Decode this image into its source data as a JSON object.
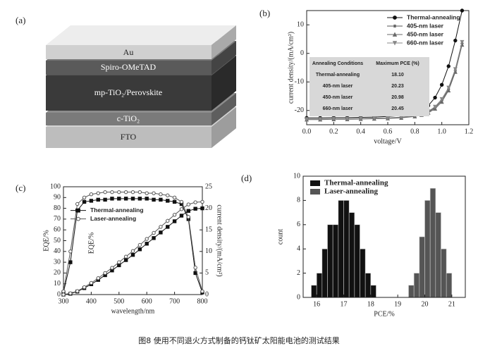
{
  "panels": [
    "(a)",
    "(b)",
    "(c)",
    "(d)"
  ],
  "device": {
    "layers": [
      "Au",
      "Spiro-OMeTAD",
      "mp-TiO₂/Perovskite",
      "c-TiO₂",
      "FTO"
    ]
  },
  "caption": "图8  使用不同退火方式制备的钙钛矿太阳能电池的测试结果",
  "chart_data": [
    {
      "type": "line",
      "xlabel": "voltage/V",
      "ylabel": "current density/(mA/cm²)",
      "x": [
        0,
        0.1,
        0.2,
        0.3,
        0.4,
        0.5,
        0.6,
        0.7,
        0.8,
        0.85,
        0.9,
        0.95,
        1.0,
        1.05,
        1.1,
        1.15
      ],
      "xlim": [
        0,
        1.2
      ],
      "ylim": [
        -25,
        15
      ],
      "xticks": [
        {
          "value": 0,
          "label": "0.0"
        },
        0.2,
        0.4,
        0.6,
        0.8,
        {
          "value": 1,
          "label": "1.0"
        },
        1.2
      ],
      "yticks": [
        -20,
        -10,
        0,
        10
      ],
      "legend": "upper right",
      "series": [
        {
          "name": "Thermal-annealing",
          "color": "#111111",
          "marker": "circle",
          "values": [
            -22.6,
            -22.6,
            -22.5,
            -22.5,
            -22.4,
            -22.3,
            -22.1,
            -21.8,
            -21.0,
            -20.0,
            -18.3,
            -15.5,
            -11.0,
            -4.5,
            4.5,
            15
          ]
        },
        {
          "name": "405-nm laser",
          "color": "#555555",
          "marker": "star",
          "values": [
            -23.1,
            -23.1,
            -23.0,
            -23.0,
            -22.9,
            -22.8,
            -22.7,
            -22.4,
            -21.9,
            -21.4,
            -20.5,
            -19.0,
            -16.5,
            -12.5,
            -6.0,
            3.5
          ]
        },
        {
          "name": "450-nm laser",
          "color": "#6a6a6a",
          "marker": "triangle-up",
          "values": [
            -23.2,
            -23.2,
            -23.1,
            -23.1,
            -23.0,
            -22.9,
            -22.8,
            -22.6,
            -22.1,
            -21.6,
            -20.8,
            -19.4,
            -17.0,
            -13.0,
            -6.5,
            3.0
          ]
        },
        {
          "name": "660-nm laser",
          "color": "#888888",
          "marker": "triangle-down",
          "values": [
            -23.0,
            -23.0,
            -22.9,
            -22.9,
            -22.8,
            -22.7,
            -22.6,
            -22.3,
            -21.8,
            -21.2,
            -20.3,
            -18.7,
            -16.0,
            -12.0,
            -5.5,
            4.0
          ]
        }
      ],
      "table": {
        "columns": [
          "Annealing Conditions",
          "Maximum PCE (%)"
        ],
        "rows": [
          [
            "Thermal-annealing",
            "18.10"
          ],
          [
            "405-nm laser",
            "20.23"
          ],
          [
            "450-nm laser",
            "20.98"
          ],
          [
            "660-nm laser",
            "20.45"
          ]
        ]
      }
    },
    {
      "type": "line",
      "xlabel": "wavelength/nm",
      "ylabel": "EQE/%",
      "y2label": "current density/(mA/cm²)",
      "annotation": "EQE/%",
      "x": [
        300,
        325,
        350,
        375,
        400,
        425,
        450,
        475,
        500,
        525,
        550,
        575,
        600,
        625,
        650,
        675,
        700,
        725,
        750,
        775,
        800
      ],
      "xlim": [
        300,
        800
      ],
      "ylim": [
        0,
        100
      ],
      "y2lim": [
        0,
        25
      ],
      "xticks": [
        300,
        400,
        500,
        600,
        700,
        800
      ],
      "yticks": [
        0,
        10,
        20,
        30,
        40,
        50,
        60,
        70,
        80,
        90,
        100
      ],
      "y2ticks": [
        0,
        5,
        10,
        15,
        20,
        25
      ],
      "legend": "center left",
      "series": [
        {
          "name": "Thermal-annealing",
          "color": "#111111",
          "marker": "square",
          "values": [
            2,
            30,
            78,
            86,
            87,
            88,
            88,
            89,
            89,
            89,
            89,
            89,
            89,
            88,
            88,
            87,
            86,
            84,
            70,
            20,
            2
          ]
        },
        {
          "name": "Laser-annealing",
          "color": "#555555",
          "marker": "circle-open",
          "values": [
            3,
            40,
            84,
            90,
            93,
            94,
            95,
            95,
            95,
            95,
            95,
            95,
            94,
            94,
            93,
            92,
            90,
            86,
            72,
            25,
            3
          ]
        },
        {
          "color": "#111111",
          "marker": "square",
          "axis": "y2",
          "values": [
            0,
            0.2,
            0.7,
            1.5,
            2.4,
            3.4,
            4.5,
            5.6,
            6.8,
            8.0,
            9.2,
            10.5,
            11.8,
            13.1,
            14.4,
            15.7,
            17.0,
            18.3,
            19.4,
            19.9,
            20.0
          ]
        },
        {
          "color": "#555555",
          "marker": "circle-open",
          "axis": "y2",
          "values": [
            0,
            0.3,
            0.8,
            1.7,
            2.7,
            3.8,
            5.0,
            6.2,
            7.5,
            8.8,
            10.1,
            11.5,
            12.9,
            14.3,
            15.7,
            17.1,
            18.5,
            19.8,
            20.9,
            21.4,
            21.5
          ]
        }
      ]
    },
    {
      "type": "histogram",
      "xlabel": "PCE/%",
      "ylabel": "count",
      "xlim": [
        15.5,
        21.5
      ],
      "ylim": [
        0,
        10
      ],
      "xticks": [
        16,
        17,
        18,
        19,
        20,
        21
      ],
      "yticks": [
        0,
        2,
        4,
        6,
        8,
        10
      ],
      "legend": "upper left",
      "series": [
        {
          "name": "Thermal-annealing",
          "color": "#111111",
          "bins": [
            15.8,
            16.0,
            16.2,
            16.4,
            16.6,
            16.8,
            17.0,
            17.2,
            17.4,
            17.6,
            17.8,
            18.0,
            18.2
          ],
          "values": [
            1,
            2,
            4,
            6,
            6,
            8,
            8,
            7,
            6,
            4,
            2,
            1
          ]
        },
        {
          "name": "Laser-annealing",
          "color": "#555555",
          "bins": [
            19.4,
            19.6,
            19.8,
            20.0,
            20.2,
            20.4,
            20.6,
            20.8,
            21.0
          ],
          "values": [
            1,
            2,
            5,
            8,
            9,
            7,
            4,
            2
          ]
        }
      ]
    }
  ]
}
